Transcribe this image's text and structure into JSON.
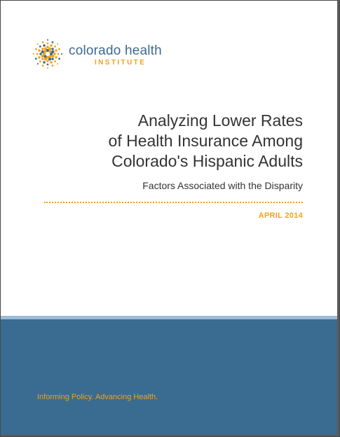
{
  "logo": {
    "name": "colorado health",
    "sub": "INSTITUTE",
    "colors": {
      "primary": "#3c6a91",
      "accent": "#f0a21c"
    }
  },
  "report": {
    "title_lines": [
      "Analyzing Lower Rates",
      "of Health Insurance Among",
      "Colorado's Hispanic Adults"
    ],
    "subtitle": "Factors Associated with the Disparity",
    "date": "APRIL 2014"
  },
  "footer": {
    "tagline": "Informing Policy. Advancing Health.",
    "band_color": "#3a6b90"
  }
}
